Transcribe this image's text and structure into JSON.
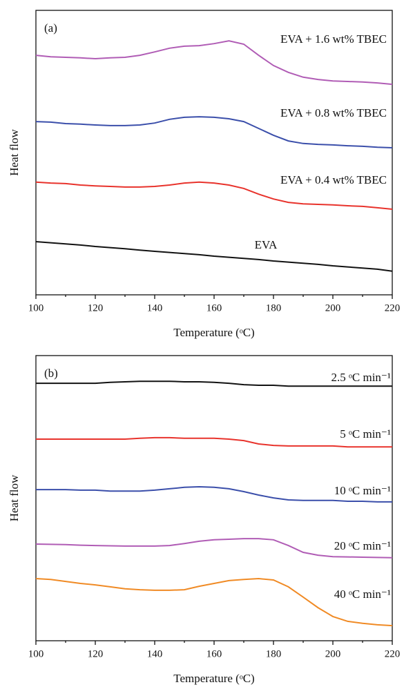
{
  "chart_data": [
    {
      "type": "line",
      "title": "(a)",
      "xlabel": "Temperature (ᵒC)",
      "ylabel": "Heat flow",
      "x": [
        100,
        105,
        110,
        115,
        120,
        125,
        130,
        135,
        140,
        145,
        150,
        155,
        160,
        165,
        170,
        175,
        180,
        185,
        190,
        195,
        200,
        205,
        210,
        215,
        220
      ],
      "xlim": [
        100,
        220
      ],
      "xticks": [
        100,
        120,
        140,
        160,
        180,
        200,
        220
      ],
      "xminorticks": [
        110,
        130,
        150,
        170,
        190,
        210
      ],
      "ylim": [
        0,
        100
      ],
      "series": [
        {
          "name": "EVA + 1.6 wt% TBEC",
          "color": "#b05cb5",
          "values": [
            84.2,
            83.7,
            83.5,
            83.3,
            83.0,
            83.3,
            83.5,
            84.2,
            85.4,
            86.7,
            87.4,
            87.6,
            88.3,
            89.3,
            88.1,
            84.2,
            80.6,
            78.2,
            76.5,
            75.7,
            75.2,
            75.0,
            74.8,
            74.5,
            74.0
          ]
        },
        {
          "name": "EVA + 0.8 wt% TBEC",
          "color": "#3a4eaa",
          "values": [
            60.9,
            60.7,
            60.2,
            60.0,
            59.7,
            59.5,
            59.5,
            59.7,
            60.4,
            61.7,
            62.4,
            62.6,
            62.4,
            61.9,
            60.9,
            58.5,
            56.1,
            54.1,
            53.2,
            52.9,
            52.7,
            52.4,
            52.2,
            51.9,
            51.7
          ]
        },
        {
          "name": "EVA + 0.4 wt% TBEC",
          "color": "#e8322b",
          "values": [
            39.6,
            39.3,
            39.1,
            38.6,
            38.3,
            38.1,
            37.9,
            37.9,
            38.1,
            38.6,
            39.3,
            39.6,
            39.3,
            38.6,
            37.4,
            35.4,
            33.7,
            32.5,
            32.0,
            31.8,
            31.6,
            31.3,
            31.1,
            30.6,
            30.1
          ]
        },
        {
          "name": "EVA",
          "color": "#111111",
          "values": [
            18.7,
            18.3,
            17.9,
            17.5,
            17.0,
            16.6,
            16.2,
            15.7,
            15.3,
            14.9,
            14.5,
            14.1,
            13.6,
            13.2,
            12.8,
            12.4,
            11.9,
            11.5,
            11.1,
            10.7,
            10.2,
            9.8,
            9.4,
            9.0,
            8.3
          ]
        }
      ]
    },
    {
      "type": "line",
      "title": "(b)",
      "xlabel": "Temperature (ᵒC)",
      "ylabel": "Heat flow",
      "x": [
        100,
        105,
        110,
        115,
        120,
        125,
        130,
        135,
        140,
        145,
        150,
        155,
        160,
        165,
        170,
        175,
        180,
        185,
        190,
        195,
        200,
        205,
        210,
        215,
        220
      ],
      "xlim": [
        100,
        220
      ],
      "xticks": [
        100,
        120,
        140,
        160,
        180,
        200,
        220
      ],
      "xminorticks": [
        110,
        130,
        150,
        170,
        190,
        210
      ],
      "ylim": [
        0,
        100
      ],
      "series": [
        {
          "name": "2.5 ᵒC min⁻¹",
          "color": "#111111",
          "values": [
            90.3,
            90.3,
            90.3,
            90.3,
            90.3,
            90.6,
            90.8,
            91.0,
            91.0,
            91.0,
            90.8,
            90.8,
            90.6,
            90.3,
            89.8,
            89.6,
            89.6,
            89.3,
            89.3,
            89.3,
            89.3,
            89.3,
            89.3,
            89.3,
            89.3
          ]
        },
        {
          "name": "5 ᵒC min⁻¹",
          "color": "#e8322b",
          "values": [
            70.7,
            70.7,
            70.7,
            70.7,
            70.7,
            70.7,
            70.7,
            71.0,
            71.2,
            71.2,
            71.0,
            71.0,
            71.0,
            70.7,
            70.2,
            69.0,
            68.5,
            68.3,
            68.3,
            68.3,
            68.3,
            68.0,
            68.0,
            68.0,
            68.0
          ]
        },
        {
          "name": "10 ᵒC min⁻¹",
          "color": "#3a4eaa",
          "values": [
            53.0,
            53.0,
            53.0,
            52.8,
            52.8,
            52.5,
            52.5,
            52.5,
            52.8,
            53.3,
            53.8,
            54.0,
            53.8,
            53.3,
            52.3,
            51.1,
            50.1,
            49.4,
            49.2,
            49.2,
            49.2,
            48.9,
            48.9,
            48.7,
            48.7
          ]
        },
        {
          "name": "20 ᵒC min⁻¹",
          "color": "#b05cb5",
          "values": [
            33.9,
            33.8,
            33.7,
            33.5,
            33.4,
            33.3,
            33.2,
            33.2,
            33.2,
            33.4,
            34.1,
            34.9,
            35.4,
            35.6,
            35.8,
            35.8,
            35.4,
            33.4,
            31.0,
            30.0,
            29.5,
            29.4,
            29.3,
            29.2,
            29.1
          ]
        },
        {
          "name": "40 ᵒC min⁻¹",
          "color": "#f08a24",
          "values": [
            21.8,
            21.5,
            20.8,
            20.1,
            19.6,
            18.9,
            18.2,
            17.9,
            17.7,
            17.7,
            17.9,
            19.1,
            20.1,
            21.1,
            21.5,
            21.8,
            21.3,
            18.9,
            15.3,
            11.6,
            8.5,
            6.8,
            6.1,
            5.6,
            5.3
          ]
        }
      ]
    }
  ]
}
